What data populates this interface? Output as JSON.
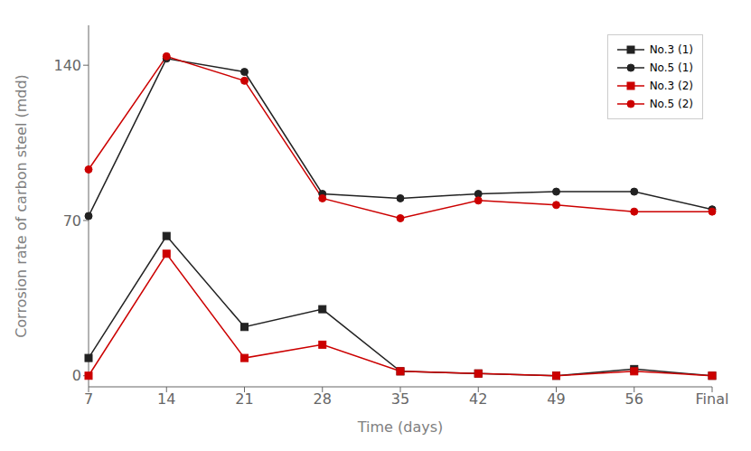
{
  "chart_data": {
    "type": "line",
    "x_label": "Time (days)",
    "y_label": "Corrosion rate of carbon steel (mdd)",
    "categories": [
      "7",
      "14",
      "21",
      "28",
      "35",
      "42",
      "49",
      "56",
      "Final"
    ],
    "series": [
      {
        "name": "No.3 (1)",
        "color": "#222222",
        "marker": "square",
        "line_style": "solid",
        "values": [
          8,
          63,
          22,
          30,
          2,
          1,
          0,
          3,
          0
        ]
      },
      {
        "name": "No.5 (1)",
        "color": "#222222",
        "marker": "circle",
        "line_style": "solid",
        "values": [
          72,
          143,
          137,
          82,
          80,
          82,
          83,
          83,
          75
        ]
      },
      {
        "name": "No.3 (2)",
        "color": "#cc0000",
        "marker": "square",
        "line_style": "solid",
        "values": [
          0,
          55,
          8,
          14,
          2,
          1,
          0,
          2,
          0
        ]
      },
      {
        "name": "No.5 (2)",
        "color": "#cc0000",
        "marker": "circle",
        "line_style": "solid",
        "values": [
          93,
          144,
          133,
          80,
          71,
          79,
          77,
          74,
          74
        ]
      }
    ],
    "ylim": [
      -5,
      158
    ],
    "yticks": [
      0,
      70,
      140
    ],
    "grid": false,
    "legend": "upper right"
  }
}
